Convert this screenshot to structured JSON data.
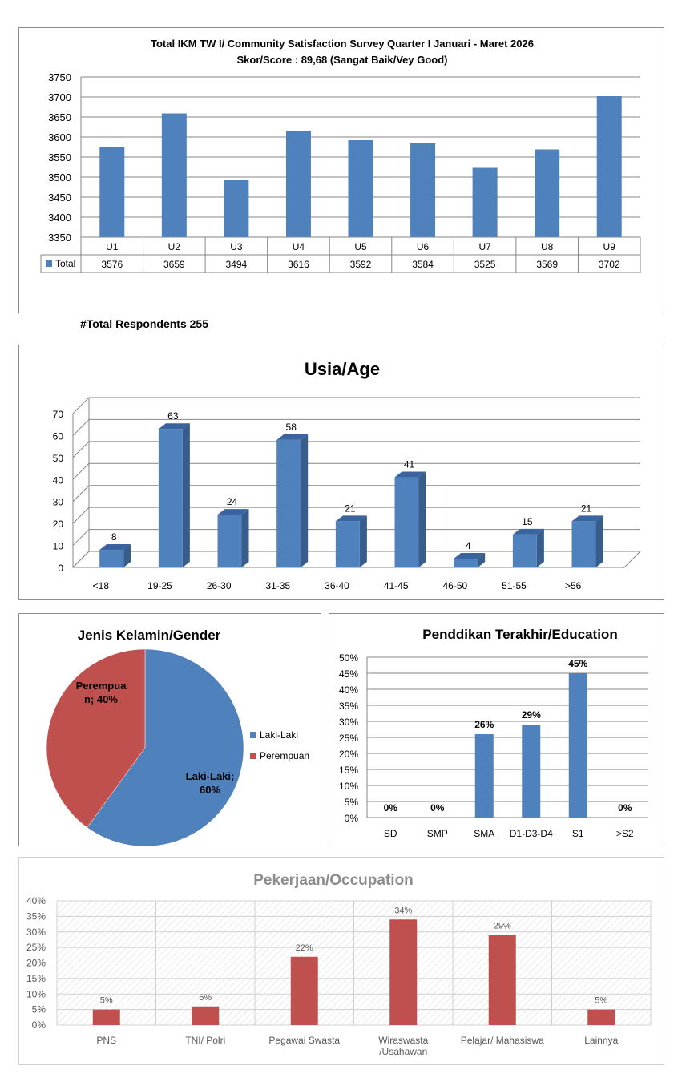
{
  "respondents": "#Total Respondents  255",
  "colors": {
    "blue": "#4f81bd",
    "blue_dark": "#385d8a",
    "red": "#c0504d",
    "grid": "#868686",
    "occ_title": "#8c8c8c"
  },
  "chart_data": [
    {
      "type": "bar",
      "title": "Total IKM TW I/ Community Satisfaction Survey Quarter I  Januari - Maret  2026",
      "subtitle": "Skor/Score : 89,68 (Sangat Baik/Vey Good)",
      "categories": [
        "U1",
        "U2",
        "U3",
        "U4",
        "U5",
        "U6",
        "U7",
        "U8",
        "U9"
      ],
      "series": [
        {
          "name": "Total",
          "values": [
            3576,
            3659,
            3494,
            3616,
            3592,
            3584,
            3525,
            3569,
            3702
          ]
        }
      ],
      "ylim": [
        3350,
        3750
      ],
      "yticks": [
        "3350",
        "3400",
        "3450",
        "3500",
        "3550",
        "3600",
        "3650",
        "3700",
        "3750"
      ],
      "data_table": true
    },
    {
      "type": "bar",
      "title": "Usia/Age",
      "categories": [
        "<18",
        "19-25",
        "26-30",
        "31-35",
        "36-40",
        "41-45",
        "46-50",
        "51-55",
        ">56"
      ],
      "values": [
        8,
        63,
        24,
        58,
        21,
        41,
        4,
        15,
        21
      ],
      "ylim": [
        0,
        70
      ],
      "yticks": [
        "0",
        "10",
        "20",
        "30",
        "40",
        "50",
        "60",
        "70"
      ],
      "style": "3d"
    },
    {
      "type": "pie",
      "title": "Jenis Kelamin/Gender",
      "slices": [
        {
          "name": "Laki-Laki",
          "value": 60,
          "label_line1": "Laki-Laki;",
          "label_line2": "60%"
        },
        {
          "name": "Perempuan",
          "value": 40,
          "label_line1": "Perempua",
          "label_line2": "n; 40%"
        }
      ],
      "legend": "right"
    },
    {
      "type": "bar",
      "title": "Penddikan Terakhir/Education",
      "categories": [
        "SD",
        "SMP",
        "SMA",
        "D1-D3-D4",
        "S1",
        ">S2"
      ],
      "values": [
        0,
        0,
        26,
        29,
        45,
        0
      ],
      "labels": [
        "0%",
        "0%",
        "26%",
        "29%",
        "45%",
        "0%"
      ],
      "ylim": [
        0,
        50
      ],
      "yticks": [
        "0%",
        "5%",
        "10%",
        "15%",
        "20%",
        "25%",
        "30%",
        "35%",
        "40%",
        "45%",
        "50%"
      ]
    },
    {
      "type": "bar",
      "title": "Pekerjaan/Occupation",
      "categories": [
        "PNS",
        "TNI/ Polri",
        "Pegawai Swasta",
        "Wiraswasta /Usahawan",
        "Pelajar/ Mahasiswa",
        "Lainnya"
      ],
      "category_lines": [
        [
          "PNS"
        ],
        [
          "TNI/ Polri"
        ],
        [
          "Pegawai Swasta"
        ],
        [
          "Wiraswasta",
          "/Usahawan"
        ],
        [
          "Pelajar/ Mahasiswa"
        ],
        [
          "Lainnya"
        ]
      ],
      "values": [
        5,
        6,
        22,
        34,
        29,
        5
      ],
      "labels": [
        "5%",
        "6%",
        "22%",
        "34%",
        "29%",
        "5%"
      ],
      "ylim": [
        0,
        40
      ],
      "yticks": [
        "0%",
        "5%",
        "10%",
        "15%",
        "20%",
        "25%",
        "30%",
        "35%",
        "40%"
      ]
    }
  ]
}
